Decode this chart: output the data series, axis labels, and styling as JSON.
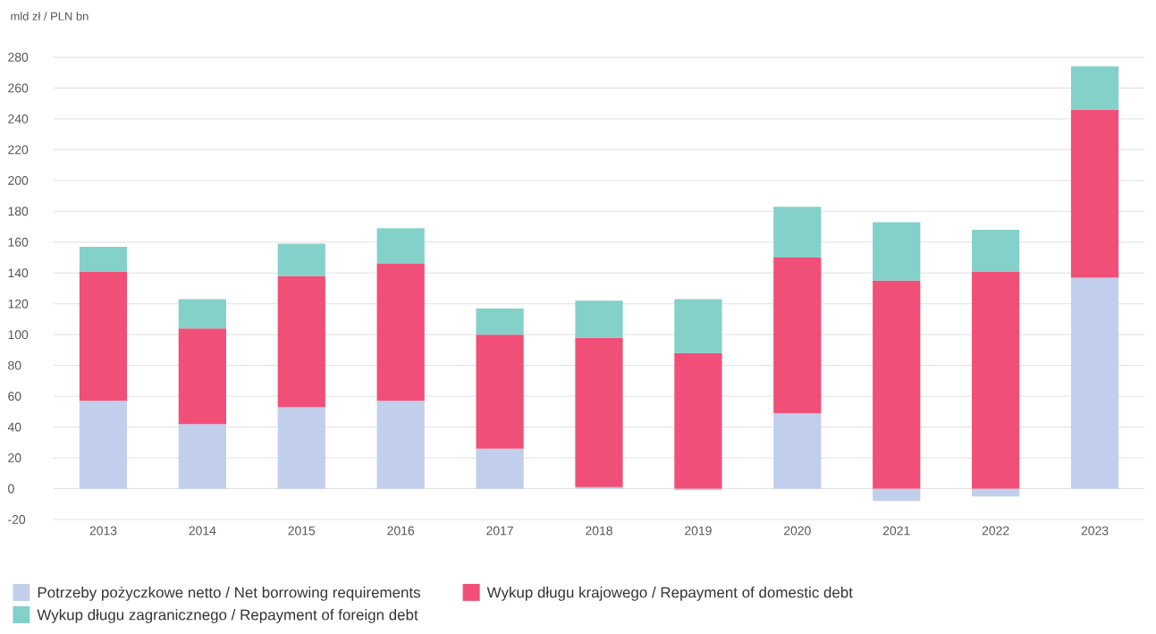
{
  "chart_data": {
    "type": "bar",
    "stacked": true,
    "ylabel": "mld zł / PLN bn",
    "categories": [
      "2013",
      "2014",
      "2015",
      "2016",
      "2017",
      "2018",
      "2019",
      "2020",
      "2021",
      "2022",
      "2023"
    ],
    "series": [
      {
        "name": "Potrzeby pożyczkowe netto / Net borrowing requirements",
        "color": "#c2cfec",
        "values": [
          57,
          42,
          53,
          57,
          26,
          1,
          -1,
          49,
          -8,
          -5,
          137
        ]
      },
      {
        "name": "Wykup długu krajowego / Repayment of domestic debt",
        "color": "#f04f78",
        "values": [
          84,
          62,
          85,
          89,
          74,
          97,
          88,
          101,
          135,
          141,
          109
        ]
      },
      {
        "name": "Wykup długu zagranicznego / Repayment of foreign debt",
        "color": "#84d1c9",
        "values": [
          16,
          19,
          21,
          23,
          17,
          24,
          35,
          33,
          38,
          27,
          28
        ]
      }
    ],
    "ylim": [
      -20,
      280
    ],
    "yticks": [
      -20,
      0,
      20,
      40,
      60,
      80,
      100,
      120,
      140,
      160,
      180,
      200,
      220,
      240,
      260,
      280
    ],
    "grid": "y",
    "legend": "bottom"
  }
}
